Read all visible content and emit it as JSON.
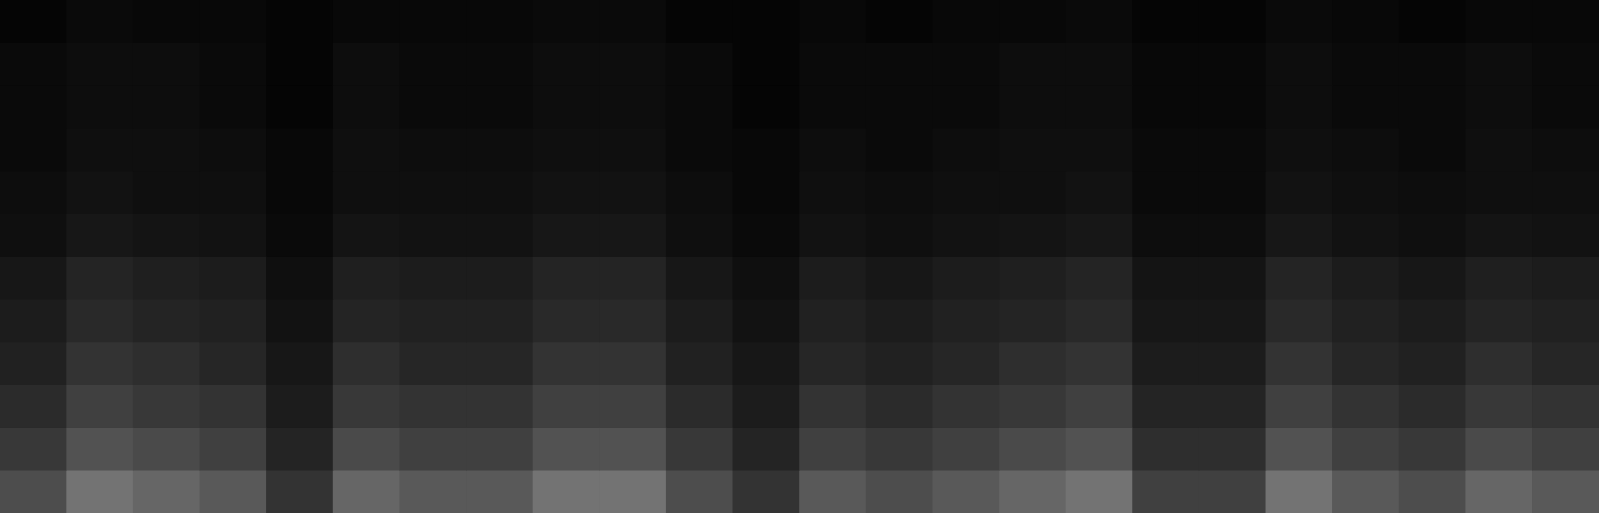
{
  "chart_data": {
    "type": "heatmap",
    "zlim": [
      0,
      100
    ],
    "grid": false,
    "tick_labels": false,
    "cells": [
      [
        2,
        4,
        3,
        3,
        2,
        3,
        3,
        3,
        4,
        4,
        2,
        2,
        3,
        2,
        3,
        3,
        4,
        2,
        2,
        4,
        3,
        2,
        3,
        3
      ],
      [
        4,
        5,
        5,
        4,
        2,
        5,
        4,
        4,
        5,
        5,
        4,
        2,
        4,
        4,
        4,
        5,
        5,
        3,
        3,
        5,
        4,
        4,
        5,
        4
      ],
      [
        4,
        5,
        5,
        4,
        2,
        5,
        4,
        4,
        5,
        5,
        4,
        2,
        4,
        4,
        4,
        5,
        5,
        3,
        3,
        5,
        4,
        4,
        5,
        4
      ],
      [
        4,
        6,
        6,
        5,
        3,
        6,
        5,
        5,
        6,
        6,
        4,
        3,
        5,
        4,
        5,
        6,
        6,
        4,
        4,
        6,
        5,
        4,
        6,
        5
      ],
      [
        5,
        7,
        6,
        6,
        3,
        6,
        6,
        6,
        7,
        7,
        5,
        3,
        6,
        5,
        6,
        6,
        7,
        4,
        4,
        7,
        6,
        5,
        6,
        6
      ],
      [
        6,
        9,
        8,
        7,
        4,
        8,
        7,
        7,
        9,
        9,
        6,
        4,
        7,
        6,
        7,
        8,
        9,
        5,
        5,
        9,
        7,
        6,
        8,
        7
      ],
      [
        9,
        14,
        12,
        11,
        6,
        12,
        11,
        11,
        14,
        14,
        9,
        6,
        11,
        9,
        11,
        12,
        14,
        8,
        8,
        14,
        11,
        9,
        12,
        11
      ],
      [
        11,
        16,
        14,
        13,
        7,
        14,
        13,
        13,
        16,
        16,
        11,
        7,
        13,
        11,
        13,
        14,
        16,
        9,
        9,
        16,
        13,
        11,
        14,
        13
      ],
      [
        13,
        20,
        18,
        15,
        9,
        18,
        15,
        15,
        20,
        20,
        13,
        9,
        15,
        13,
        15,
        18,
        20,
        11,
        11,
        20,
        15,
        13,
        18,
        15
      ],
      [
        17,
        25,
        22,
        20,
        11,
        22,
        20,
        20,
        25,
        25,
        17,
        11,
        20,
        17,
        20,
        22,
        25,
        14,
        14,
        25,
        20,
        17,
        22,
        20
      ],
      [
        22,
        32,
        29,
        25,
        14,
        29,
        25,
        25,
        32,
        32,
        22,
        14,
        25,
        22,
        25,
        29,
        32,
        18,
        18,
        32,
        25,
        22,
        29,
        25
      ],
      [
        30,
        45,
        40,
        35,
        20,
        40,
        35,
        35,
        45,
        45,
        30,
        20,
        35,
        30,
        35,
        40,
        45,
        25,
        25,
        45,
        35,
        30,
        40,
        35
      ]
    ]
  }
}
